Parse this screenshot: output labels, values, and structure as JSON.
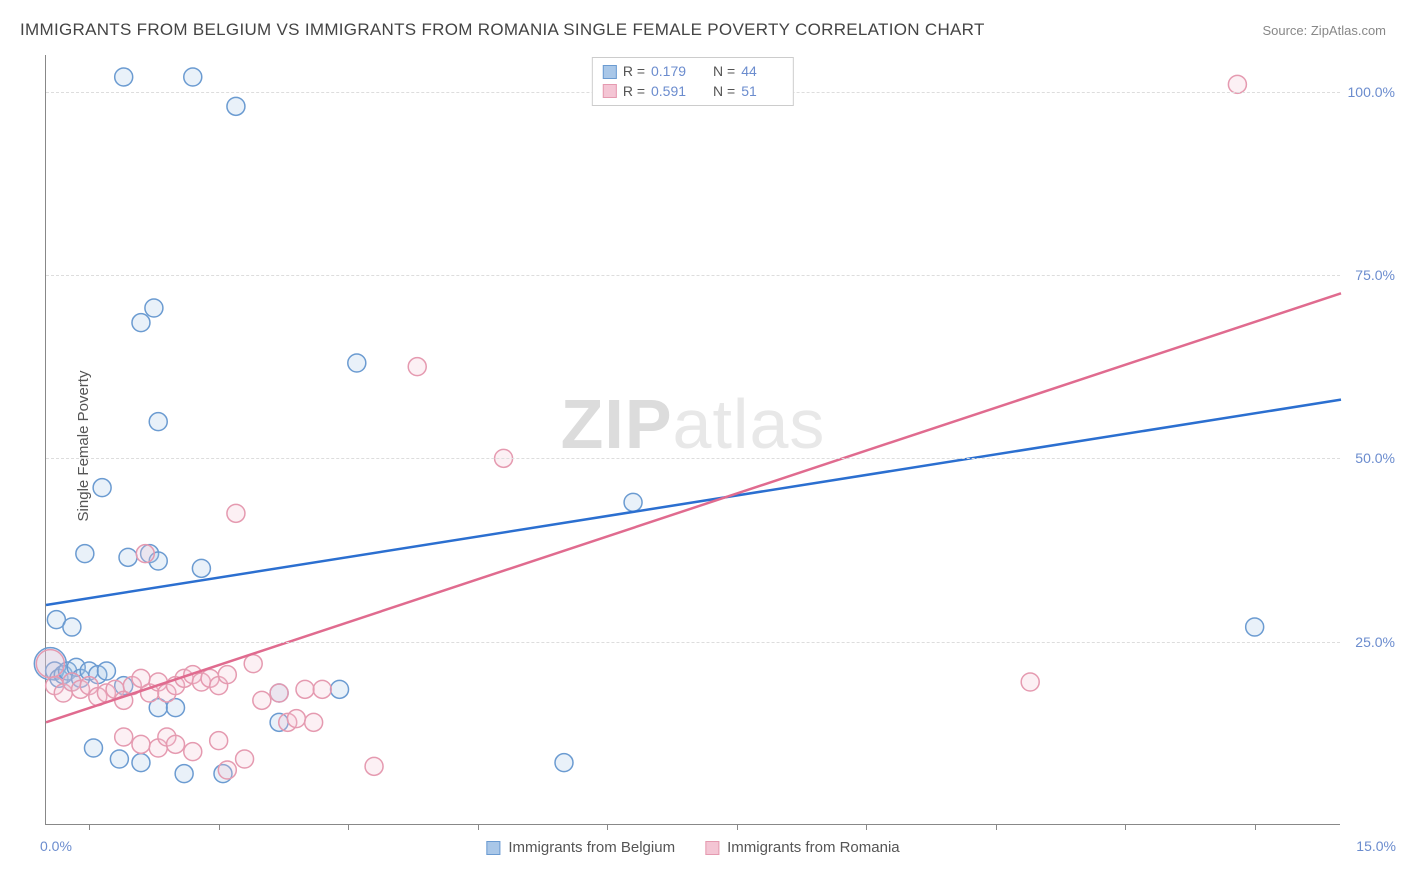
{
  "title": "IMMIGRANTS FROM BELGIUM VS IMMIGRANTS FROM ROMANIA SINGLE FEMALE POVERTY CORRELATION CHART",
  "source": "Source: ZipAtlas.com",
  "ylabel": "Single Female Poverty",
  "watermark_bold": "ZIP",
  "watermark_light": "atlas",
  "chart": {
    "type": "scatter",
    "xlim": [
      0,
      15
    ],
    "ylim": [
      0,
      105
    ],
    "yticks": [
      25,
      50,
      75,
      100
    ],
    "ytick_labels": [
      "25.0%",
      "50.0%",
      "75.0%",
      "100.0%"
    ],
    "xtick_positions": [
      0.5,
      2.0,
      3.5,
      5.0,
      6.5,
      8.0,
      9.5,
      11.0,
      12.5,
      14.0
    ],
    "x_min_label": "0.0%",
    "x_max_label": "15.0%",
    "grid_color": "#dddddd",
    "axis_color": "#888888",
    "background_color": "#ffffff",
    "marker_radius": 9,
    "marker_stroke_width": 1.5,
    "marker_fill_opacity": 0.25,
    "line_width": 2.5
  },
  "series": [
    {
      "name": "Immigrants from Belgium",
      "color_stroke": "#6b9bd1",
      "color_fill": "#a9c7e8",
      "line_color": "#2b6fd0",
      "r_label": "R =",
      "r_value": "0.179",
      "n_label": "N =",
      "n_value": "44",
      "regression": {
        "x1": 0,
        "y1": 30,
        "x2": 15,
        "y2": 58
      },
      "points": [
        {
          "x": 0.05,
          "y": 22,
          "r": 16
        },
        {
          "x": 0.1,
          "y": 21
        },
        {
          "x": 0.15,
          "y": 20
        },
        {
          "x": 0.2,
          "y": 20.5
        },
        {
          "x": 0.25,
          "y": 21
        },
        {
          "x": 0.3,
          "y": 19.5
        },
        {
          "x": 0.35,
          "y": 21.5
        },
        {
          "x": 0.4,
          "y": 20
        },
        {
          "x": 0.5,
          "y": 21
        },
        {
          "x": 0.6,
          "y": 20.5
        },
        {
          "x": 0.7,
          "y": 21
        },
        {
          "x": 0.12,
          "y": 28
        },
        {
          "x": 0.3,
          "y": 27
        },
        {
          "x": 0.9,
          "y": 19
        },
        {
          "x": 0.55,
          "y": 10.5
        },
        {
          "x": 0.85,
          "y": 9
        },
        {
          "x": 1.1,
          "y": 8.5
        },
        {
          "x": 1.3,
          "y": 16
        },
        {
          "x": 1.5,
          "y": 16
        },
        {
          "x": 1.6,
          "y": 7
        },
        {
          "x": 0.45,
          "y": 37
        },
        {
          "x": 0.95,
          "y": 36.5
        },
        {
          "x": 1.2,
          "y": 37
        },
        {
          "x": 1.3,
          "y": 36
        },
        {
          "x": 1.8,
          "y": 35
        },
        {
          "x": 0.65,
          "y": 46
        },
        {
          "x": 1.3,
          "y": 55
        },
        {
          "x": 1.1,
          "y": 68.5
        },
        {
          "x": 1.25,
          "y": 70.5
        },
        {
          "x": 0.9,
          "y": 102
        },
        {
          "x": 1.7,
          "y": 102
        },
        {
          "x": 2.2,
          "y": 98
        },
        {
          "x": 3.6,
          "y": 63
        },
        {
          "x": 2.7,
          "y": 18
        },
        {
          "x": 2.7,
          "y": 14
        },
        {
          "x": 2.05,
          "y": 7
        },
        {
          "x": 3.4,
          "y": 18.5
        },
        {
          "x": 6.0,
          "y": 8.5
        },
        {
          "x": 6.8,
          "y": 44
        },
        {
          "x": 14.0,
          "y": 27
        }
      ]
    },
    {
      "name": "Immigrants from Romania",
      "color_stroke": "#e59ab0",
      "color_fill": "#f4c5d4",
      "line_color": "#e06b8f",
      "r_label": "R =",
      "r_value": "0.591",
      "n_label": "N =",
      "n_value": "51",
      "regression": {
        "x1": 0,
        "y1": 14,
        "x2": 15,
        "y2": 72.5
      },
      "points": [
        {
          "x": 0.05,
          "y": 22,
          "r": 14
        },
        {
          "x": 0.1,
          "y": 19
        },
        {
          "x": 0.2,
          "y": 18
        },
        {
          "x": 0.3,
          "y": 19.5
        },
        {
          "x": 0.4,
          "y": 18.5
        },
        {
          "x": 0.5,
          "y": 19
        },
        {
          "x": 0.6,
          "y": 17.5
        },
        {
          "x": 0.7,
          "y": 18
        },
        {
          "x": 0.8,
          "y": 18.5
        },
        {
          "x": 0.9,
          "y": 17
        },
        {
          "x": 1.0,
          "y": 19
        },
        {
          "x": 1.1,
          "y": 20
        },
        {
          "x": 1.2,
          "y": 18
        },
        {
          "x": 1.3,
          "y": 19.5
        },
        {
          "x": 1.4,
          "y": 18
        },
        {
          "x": 1.5,
          "y": 19
        },
        {
          "x": 1.6,
          "y": 20
        },
        {
          "x": 1.7,
          "y": 20.5
        },
        {
          "x": 1.8,
          "y": 19.5
        },
        {
          "x": 1.9,
          "y": 20
        },
        {
          "x": 2.0,
          "y": 19
        },
        {
          "x": 2.1,
          "y": 20.5
        },
        {
          "x": 2.4,
          "y": 22
        },
        {
          "x": 0.9,
          "y": 12
        },
        {
          "x": 1.1,
          "y": 11
        },
        {
          "x": 1.3,
          "y": 10.5
        },
        {
          "x": 1.4,
          "y": 12
        },
        {
          "x": 1.5,
          "y": 11
        },
        {
          "x": 1.7,
          "y": 10
        },
        {
          "x": 2.0,
          "y": 11.5
        },
        {
          "x": 2.1,
          "y": 7.5
        },
        {
          "x": 2.3,
          "y": 9
        },
        {
          "x": 2.2,
          "y": 42.5
        },
        {
          "x": 1.15,
          "y": 37
        },
        {
          "x": 2.5,
          "y": 17
        },
        {
          "x": 2.7,
          "y": 18
        },
        {
          "x": 2.8,
          "y": 14
        },
        {
          "x": 2.9,
          "y": 14.5
        },
        {
          "x": 3.0,
          "y": 18.5
        },
        {
          "x": 3.2,
          "y": 18.5
        },
        {
          "x": 3.1,
          "y": 14
        },
        {
          "x": 3.8,
          "y": 8
        },
        {
          "x": 4.3,
          "y": 62.5
        },
        {
          "x": 5.3,
          "y": 50
        },
        {
          "x": 11.4,
          "y": 19.5
        },
        {
          "x": 13.8,
          "y": 101
        }
      ]
    }
  ]
}
